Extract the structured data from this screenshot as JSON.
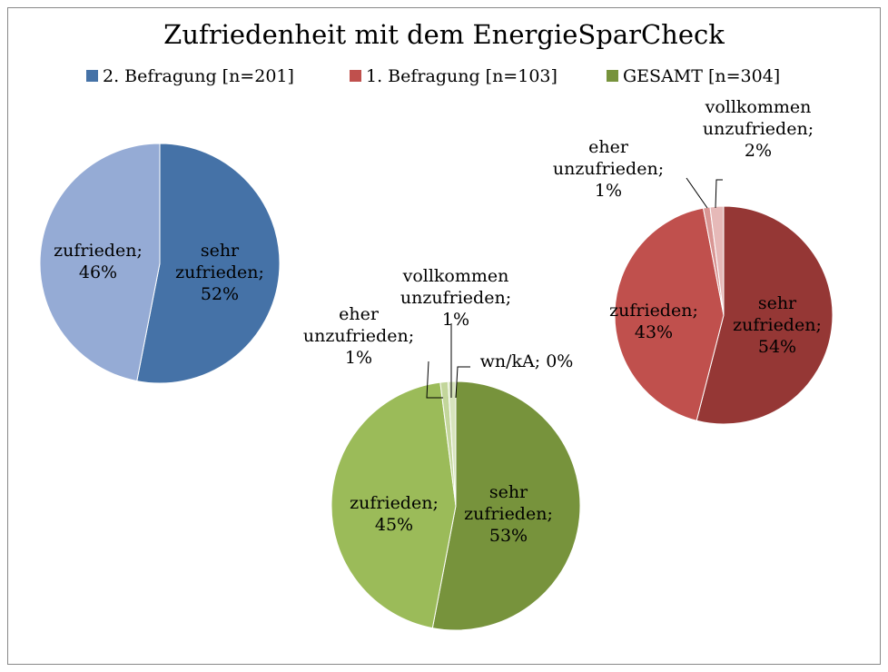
{
  "title": "Zufriedenheit mit dem EnergieSparCheck",
  "chart_data": [
    {
      "type": "pie",
      "name": "2. Befragung [n=201]",
      "color": "#4572a7",
      "categories": [
        "sehr zufrieden",
        "zufrieden"
      ],
      "values": [
        52,
        46
      ],
      "value_labels": [
        "sehr zufrieden; 52%",
        "zufrieden; 46%"
      ],
      "colors": [
        "#4572a7",
        "#95abd5"
      ]
    },
    {
      "type": "pie",
      "name": "1. Befragung [n=103]",
      "color": "#c0504d",
      "categories": [
        "sehr zufrieden",
        "zufrieden",
        "eher unzufrieden",
        "vollkommen unzufrieden"
      ],
      "values": [
        54,
        43,
        1,
        2
      ],
      "value_labels": [
        "sehr zufrieden; 54%",
        "zufrieden; 43%",
        "eher unzufrieden; 1%",
        "vollkommen unzufrieden; 2%"
      ],
      "colors": [
        "#953735",
        "#c0504d",
        "#d99694",
        "#e6b9b8"
      ]
    },
    {
      "type": "pie",
      "name": "GESAMT [n=304]",
      "color": "#77933c",
      "categories": [
        "sehr zufrieden",
        "zufrieden",
        "eher unzufrieden",
        "vollkommen unzufrieden",
        "wn/kA"
      ],
      "values": [
        53,
        45,
        1,
        1,
        0
      ],
      "value_labels": [
        "sehr zufrieden; 53%",
        "zufrieden; 45%",
        "eher unzufrieden; 1%",
        "vollkommen unzufrieden; 1%",
        "wn/kA; 0%"
      ],
      "colors": [
        "#77933c",
        "#9bbb59",
        "#c3d69b",
        "#d7e4bd",
        "#ebf1de"
      ]
    }
  ]
}
